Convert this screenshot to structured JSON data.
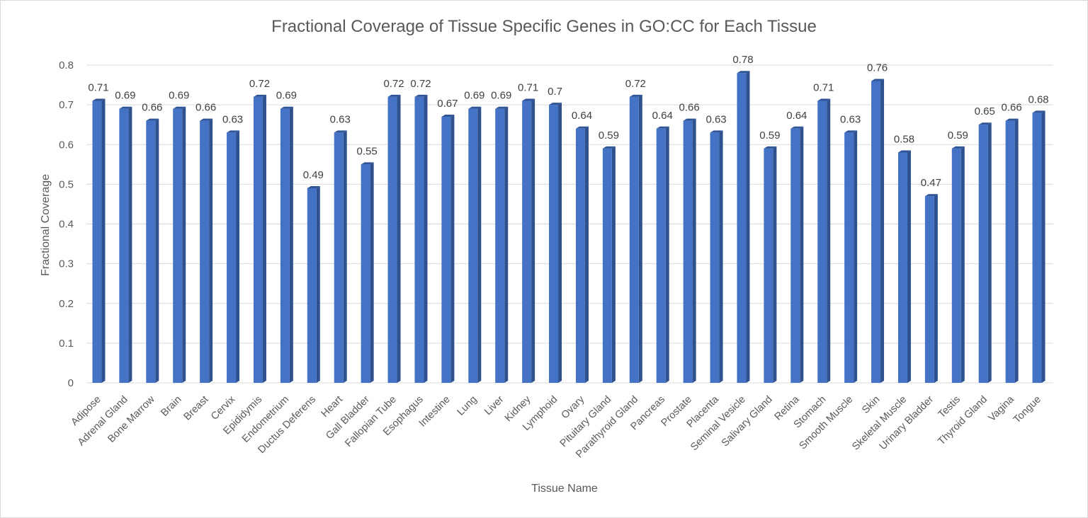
{
  "chart_data": {
    "type": "bar",
    "title": "Fractional Coverage of Tissue Specific Genes in GO:CC for Each Tissue",
    "xlabel": "Tissue Name",
    "ylabel": "Fractional Coverage",
    "ylim": [
      0,
      0.8
    ],
    "yticks": [
      "0",
      "0.1",
      "0.2",
      "0.3",
      "0.4",
      "0.5",
      "0.6",
      "0.7",
      "0.8"
    ],
    "grid": true,
    "legend": "none",
    "bar_color": "#4472c4",
    "categories": [
      "Adipose",
      "Adrenal Gland",
      "Bone Marrow",
      "Brain",
      "Breast",
      "Cervix",
      "Epididymis",
      "Endometrium",
      "Ductus Deferens",
      "Heart",
      "Gall Bladder",
      "Fallopian Tube",
      "Esophagus",
      "Intestine",
      "Lung",
      "Liver",
      "Kidney",
      "Lymphoid",
      "Ovary",
      "Pituitary Gland",
      "Parathyroid Gland",
      "Pancreas",
      "Prostate",
      "Placenta",
      "Seminal Vesicle",
      "Salivary Gland",
      "Retina",
      "Stomach",
      "Smooth Muscle",
      "Skin",
      "Skeletal Muscle",
      "Urinary Bladder",
      "Testis",
      "Thyroid Gland",
      "Vagina",
      "Tongue"
    ],
    "values": [
      0.71,
      0.69,
      0.66,
      0.69,
      0.66,
      0.63,
      0.72,
      0.69,
      0.49,
      0.63,
      0.55,
      0.72,
      0.72,
      0.67,
      0.69,
      0.69,
      0.71,
      0.7,
      0.64,
      0.59,
      0.72,
      0.64,
      0.66,
      0.63,
      0.78,
      0.59,
      0.64,
      0.71,
      0.63,
      0.76,
      0.58,
      0.47,
      0.59,
      0.65,
      0.66,
      0.68
    ],
    "data_labels": [
      "0.71",
      "0.69",
      "0.66",
      "0.69",
      "0.66",
      "0.63",
      "0.72",
      "0.69",
      "0.49",
      "0.63",
      "0.55",
      "0.72",
      "0.72",
      "0.67",
      "0.69",
      "0.69",
      "0.71",
      "0.7",
      "0.64",
      "0.59",
      "0.72",
      "0.64",
      "0.66",
      "0.63",
      "0.78",
      "0.59",
      "0.64",
      "0.71",
      "0.63",
      "0.76",
      "0.58",
      "0.47",
      "0.59",
      "0.65",
      "0.66",
      "0.68"
    ]
  }
}
